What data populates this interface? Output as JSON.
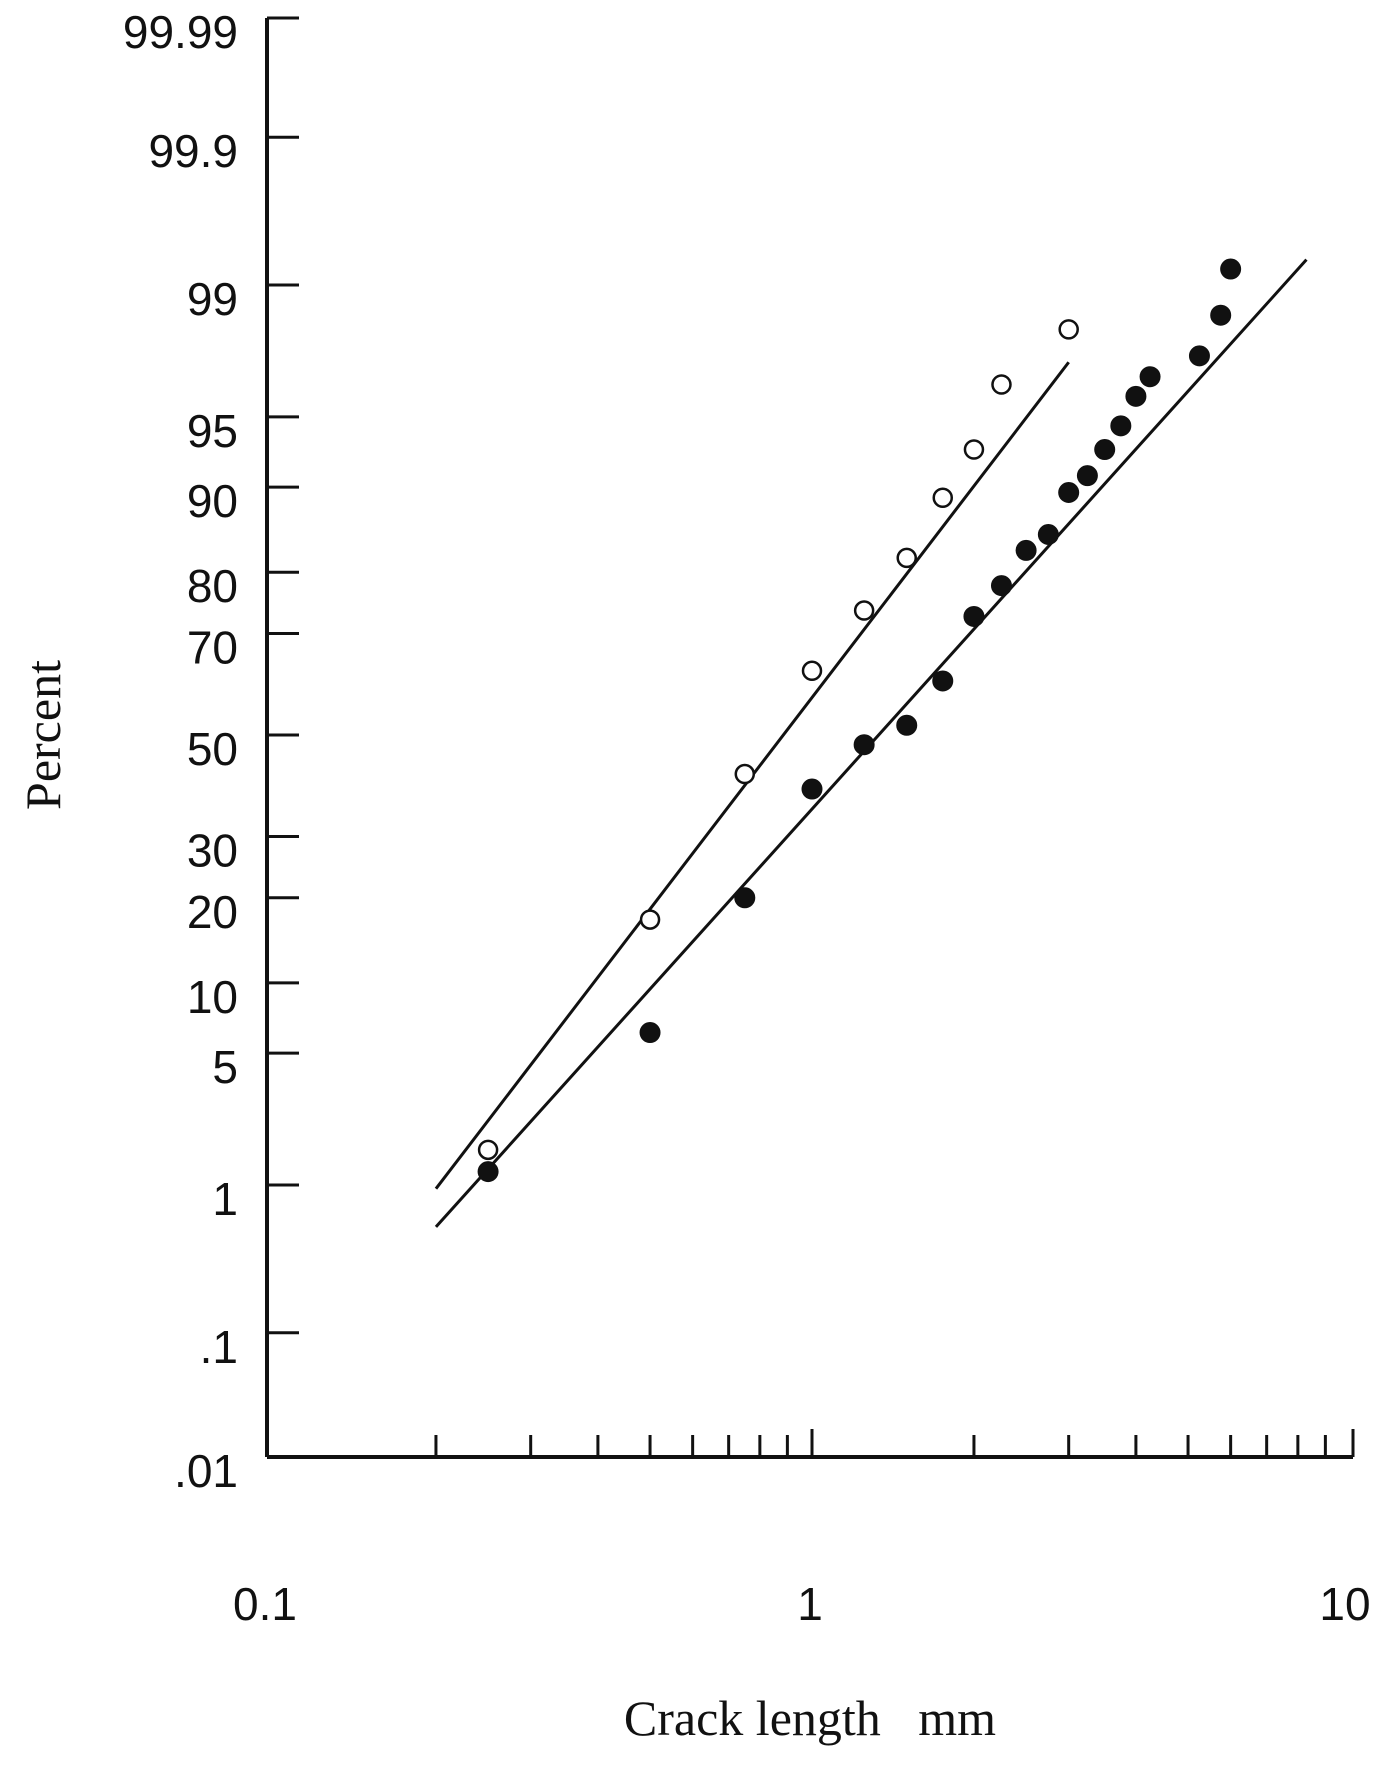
{
  "chart_data": {
    "type": "scatter",
    "title": "",
    "xlabel": "Crack length   mm",
    "ylabel": "Percent",
    "x_scale": "log",
    "y_scale": "probability",
    "xlim": [
      0.1,
      10
    ],
    "ylim": [
      0.01,
      99.99
    ],
    "grid": false,
    "legend": "none",
    "x_ticks": [
      {
        "value": 0.1,
        "label": "0.1"
      },
      {
        "value": 1,
        "label": "1"
      },
      {
        "value": 10,
        "label": "10"
      }
    ],
    "y_ticks": [
      {
        "value": 99.99,
        "label": "99.99"
      },
      {
        "value": 99.9,
        "label": "99.9"
      },
      {
        "value": 99,
        "label": "99"
      },
      {
        "value": 95,
        "label": "95"
      },
      {
        "value": 90,
        "label": "90"
      },
      {
        "value": 80,
        "label": "80"
      },
      {
        "value": 70,
        "label": "70"
      },
      {
        "value": 50,
        "label": "50"
      },
      {
        "value": 30,
        "label": "30"
      },
      {
        "value": 20,
        "label": "20"
      },
      {
        "value": 10,
        "label": "10"
      },
      {
        "value": 5,
        "label": "5"
      },
      {
        "value": 1,
        "label": "1"
      },
      {
        "value": 0.1,
        "label": ".1"
      },
      {
        "value": 0.01,
        "label": ".01"
      }
    ],
    "series": [
      {
        "marker": "open-circle",
        "points": [
          {
            "x": 0.25,
            "y": 1.6
          },
          {
            "x": 0.5,
            "y": 17
          },
          {
            "x": 0.75,
            "y": 42
          },
          {
            "x": 1.0,
            "y": 63
          },
          {
            "x": 1.25,
            "y": 74
          },
          {
            "x": 1.5,
            "y": 82
          },
          {
            "x": 1.75,
            "y": 89
          },
          {
            "x": 2.0,
            "y": 93
          },
          {
            "x": 2.25,
            "y": 96.5
          },
          {
            "x": 3.0,
            "y": 98.2
          }
        ],
        "fit_line": [
          {
            "x": 0.2,
            "y": 0.95
          },
          {
            "x": 3.0,
            "y": 97.3
          }
        ],
        "color": "#111111"
      },
      {
        "marker": "filled-circle",
        "points": [
          {
            "x": 0.25,
            "y": 1.2
          },
          {
            "x": 0.5,
            "y": 6.2
          },
          {
            "x": 0.75,
            "y": 20
          },
          {
            "x": 1.0,
            "y": 39
          },
          {
            "x": 1.25,
            "y": 48
          },
          {
            "x": 1.5,
            "y": 52
          },
          {
            "x": 1.75,
            "y": 61
          },
          {
            "x": 2.0,
            "y": 73
          },
          {
            "x": 2.25,
            "y": 78
          },
          {
            "x": 2.5,
            "y": 83
          },
          {
            "x": 2.75,
            "y": 85
          },
          {
            "x": 3.0,
            "y": 89.5
          },
          {
            "x": 3.25,
            "y": 91
          },
          {
            "x": 3.5,
            "y": 93
          },
          {
            "x": 3.75,
            "y": 94.5
          },
          {
            "x": 4.0,
            "y": 96
          },
          {
            "x": 4.25,
            "y": 96.8
          },
          {
            "x": 5.25,
            "y": 97.5
          },
          {
            "x": 5.75,
            "y": 98.5
          },
          {
            "x": 6.0,
            "y": 99.2
          }
        ],
        "fit_line": [
          {
            "x": 0.2,
            "y": 0.55
          },
          {
            "x": 8.3,
            "y": 99.3
          }
        ],
        "color": "#111111"
      }
    ]
  }
}
